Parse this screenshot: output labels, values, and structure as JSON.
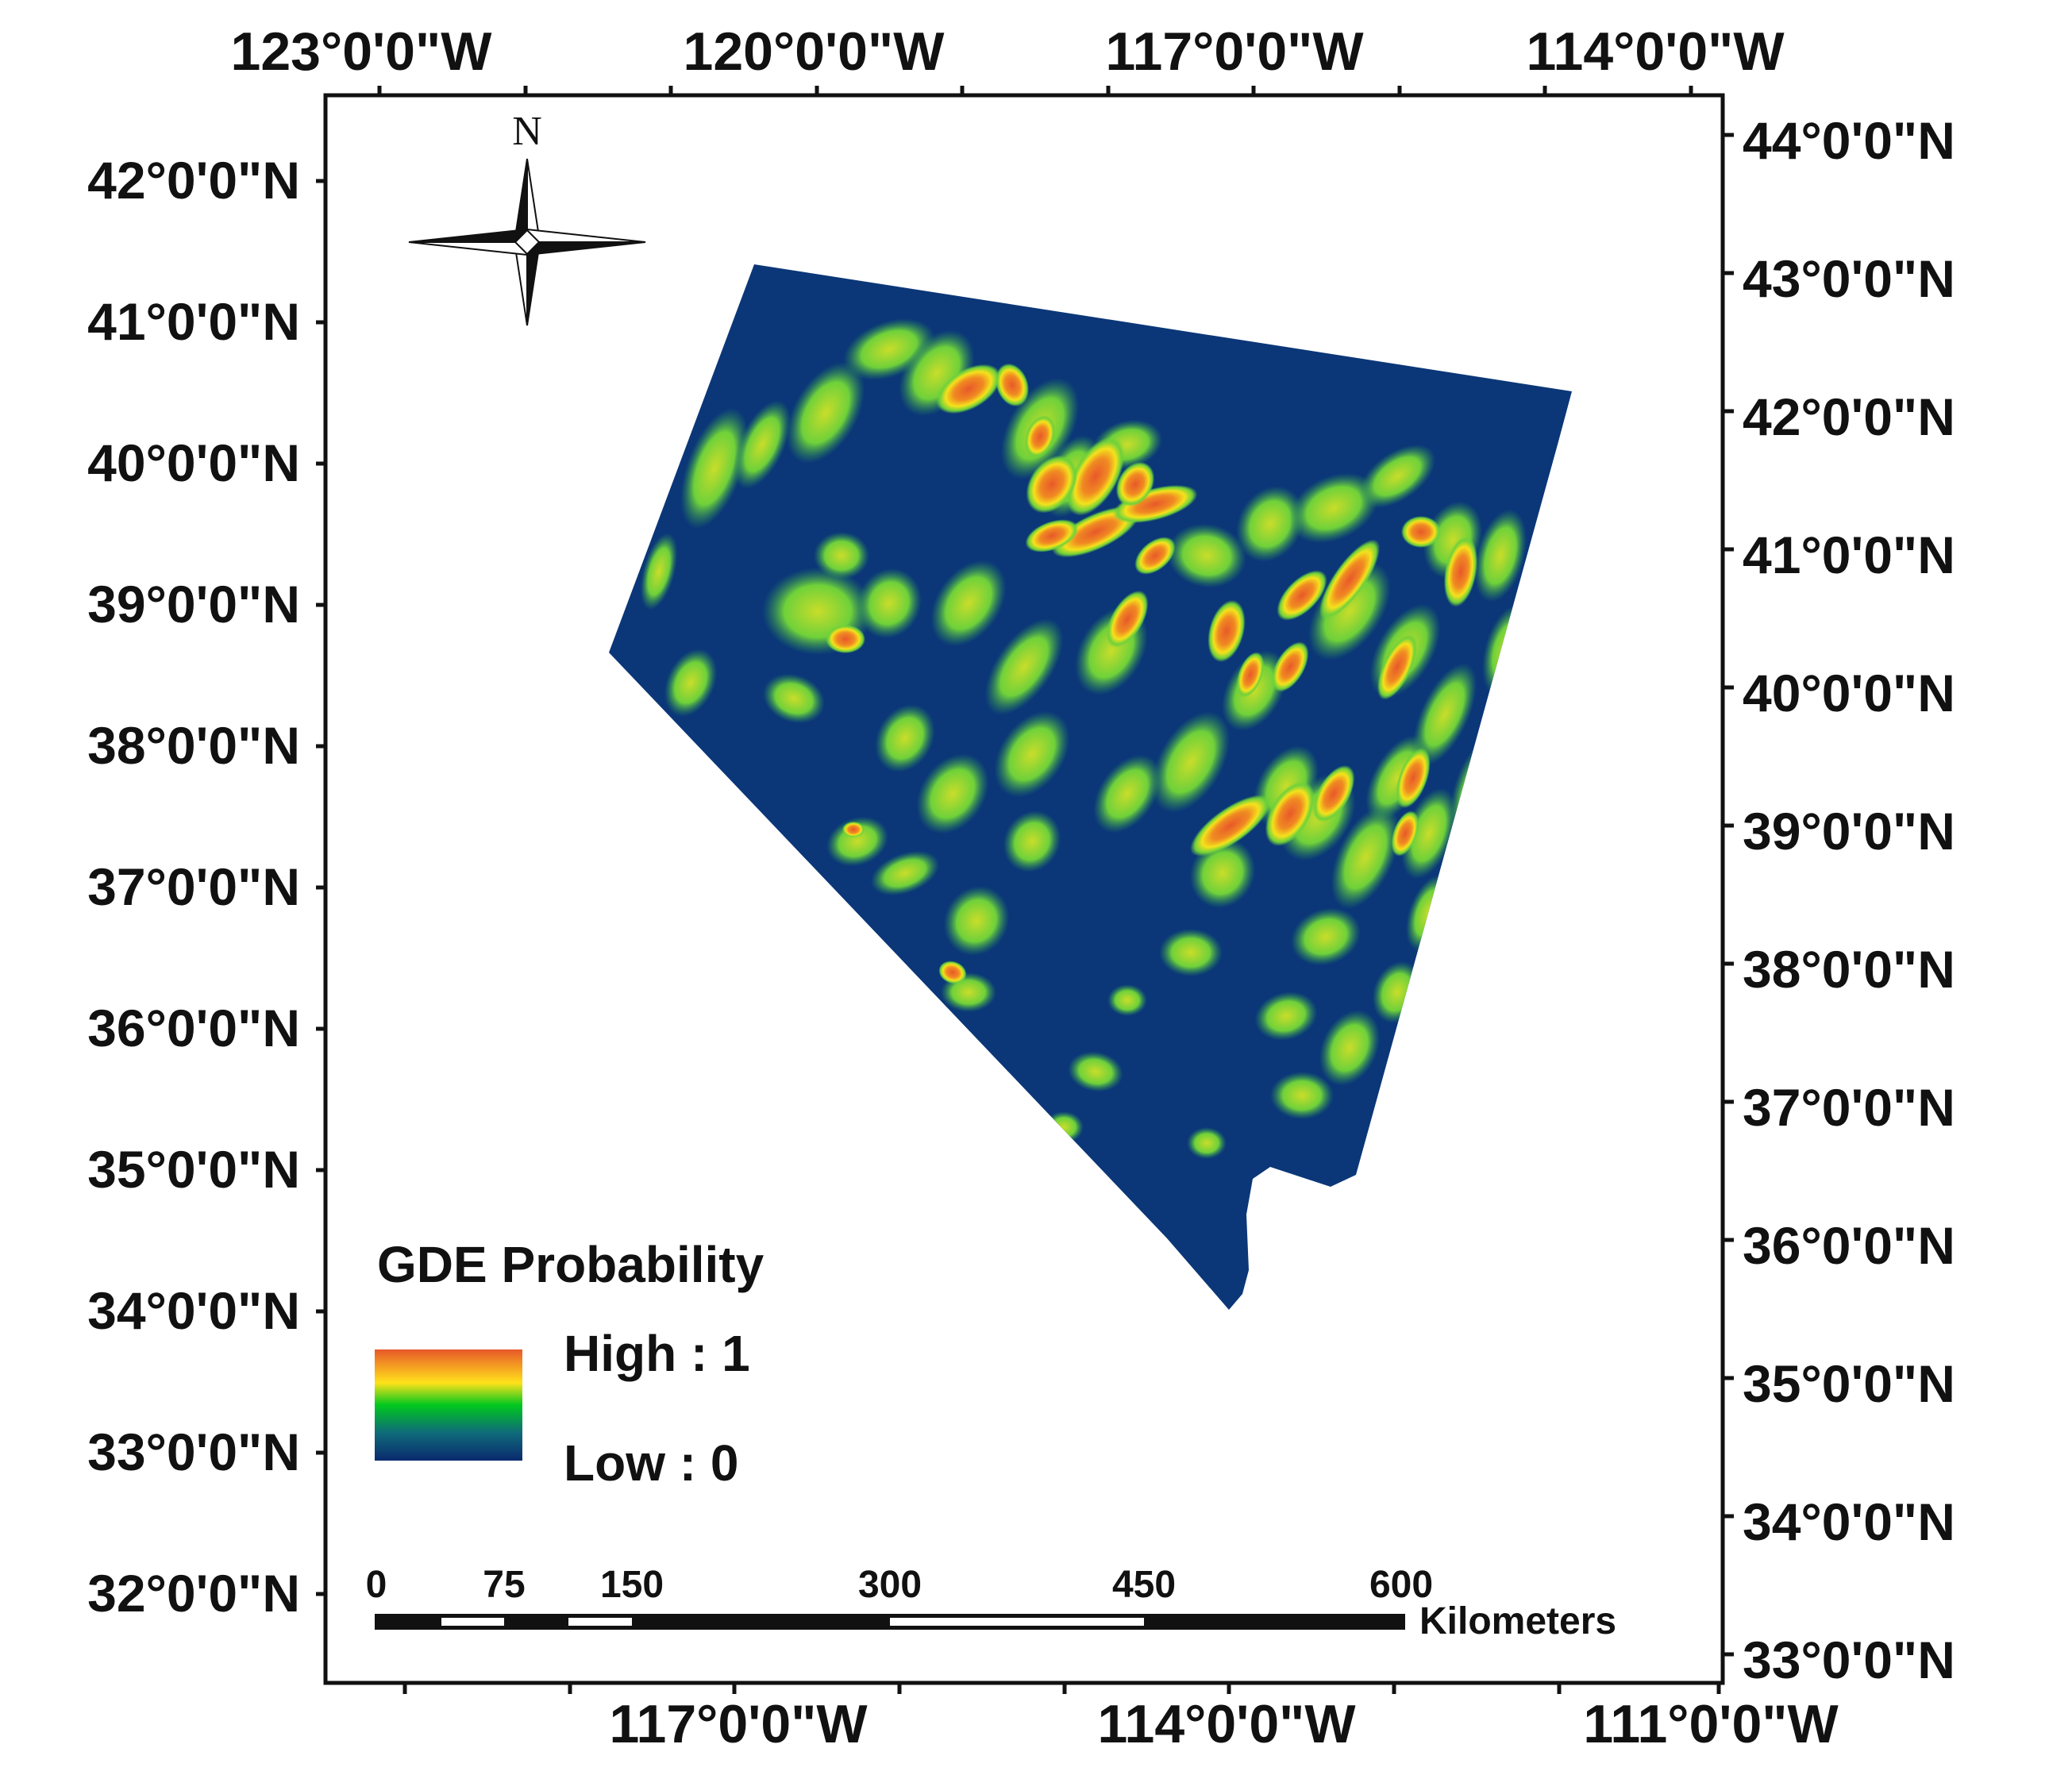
{
  "axes": {
    "top": [
      "123°0'0\"W",
      "120°0'0\"W",
      "117°0'0\"W",
      "114°0'0\"W"
    ],
    "bottom": [
      "117°0'0\"W",
      "114°0'0\"W",
      "111°0'0\"W"
    ],
    "left": [
      "42°0'0\"N",
      "41°0'0\"N",
      "40°0'0\"N",
      "39°0'0\"N",
      "38°0'0\"N",
      "37°0'0\"N",
      "36°0'0\"N",
      "35°0'0\"N",
      "34°0'0\"N",
      "33°0'0\"N",
      "32°0'0\"N"
    ],
    "right": [
      "44°0'0\"N",
      "43°0'0\"N",
      "42°0'0\"N",
      "41°0'0\"N",
      "40°0'0\"N",
      "39°0'0\"N",
      "38°0'0\"N",
      "37°0'0\"N",
      "36°0'0\"N",
      "35°0'0\"N",
      "34°0'0\"N",
      "33°0'0\"N"
    ]
  },
  "north_arrow": {
    "label": "N",
    "icon": "compass-rose-icon"
  },
  "legend": {
    "title": "GDE Probability",
    "high_label": "High : 1",
    "low_label": "Low : 0",
    "ramp_colors": [
      "#e8582a",
      "#ffe21a",
      "#00c81e",
      "#0a4b8c",
      "#0a2a6e"
    ]
  },
  "scale_bar": {
    "ticks": [
      "0",
      "75",
      "150",
      "300",
      "450",
      "600"
    ],
    "unit": "Kilometers"
  },
  "colors": {
    "low": "#0b3778",
    "mid_low": "#1f8a5a",
    "mid": "#6fd13a",
    "mid_high": "#f4e21c",
    "high": "#e8582a"
  }
}
